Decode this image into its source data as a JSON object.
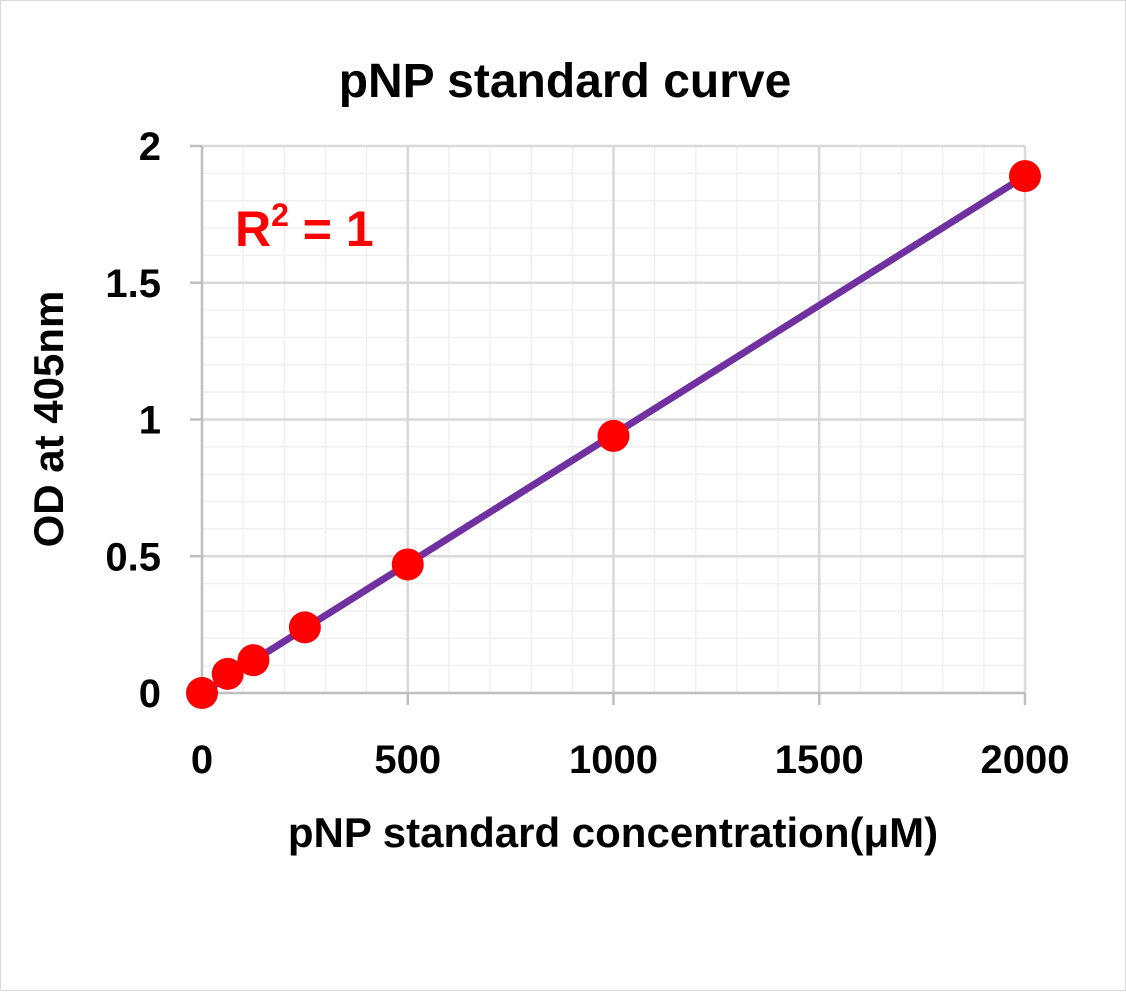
{
  "chart_data": {
    "type": "scatter",
    "title": "pNP standard curve",
    "xlabel": "pNP standard concentration(μM)",
    "ylabel": "OD at 405nm",
    "xlim": [
      0,
      2000
    ],
    "ylim": [
      0,
      2
    ],
    "x_major_ticks": [
      0,
      500,
      1000,
      1500,
      2000
    ],
    "x_tick_labels": [
      "0",
      "500",
      "1000",
      "1500",
      "2000"
    ],
    "x_minor_step": 100,
    "y_major_ticks": [
      0,
      0.5,
      1,
      1.5,
      2
    ],
    "y_tick_labels": [
      "0",
      "0.5",
      "1",
      "1.5",
      "2"
    ],
    "y_minor_step": 0.1,
    "grid": true,
    "legend": false,
    "series": [
      {
        "x": [
          0,
          62.5,
          125,
          250,
          500,
          1000,
          2000
        ],
        "y": [
          0,
          0.07,
          0.12,
          0.24,
          0.47,
          0.94,
          1.89
        ],
        "marker_color": "#ff0000"
      }
    ],
    "trendline": {
      "type": "linear",
      "from": [
        0,
        0
      ],
      "to": [
        2000,
        1.89
      ],
      "color": "#7030a0"
    },
    "annotation": {
      "text_main": "R",
      "superscript": "2",
      "text_rest": " = 1",
      "color": "#ff0000"
    }
  }
}
